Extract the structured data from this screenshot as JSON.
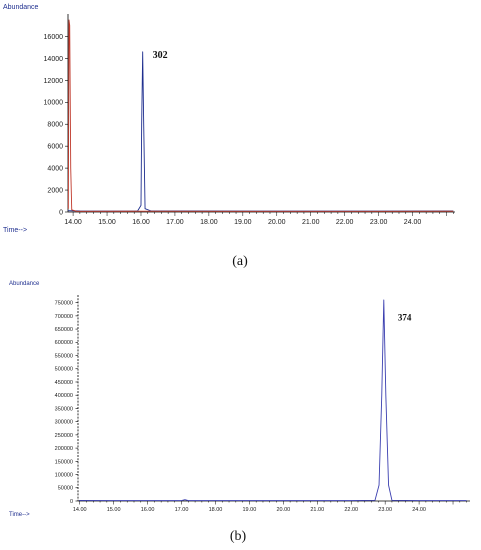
{
  "chart_data": [
    {
      "type": "line",
      "panel_label": "(a)",
      "ylabel": "Abundance",
      "xlabel": "Time-->",
      "xlim": [
        13.85,
        25.25
      ],
      "ylim": [
        0,
        17500
      ],
      "x_ticks": [
        "14.00",
        "15.00",
        "16.00",
        "17.00",
        "18.00",
        "19.00",
        "20.00",
        "21.00",
        "22.00",
        "23.00",
        "24.00"
      ],
      "y_ticks": [
        "0",
        "2000",
        "4000",
        "6000",
        "8000",
        "10000",
        "12000",
        "14000",
        "16000"
      ],
      "annotations": [
        {
          "text": "302",
          "x": 16.05,
          "y": 14600
        }
      ],
      "series": [
        {
          "color": "#1f2f8f",
          "points": [
            [
              13.85,
              120
            ],
            [
              14.2,
              90
            ],
            [
              15.0,
              80
            ],
            [
              15.9,
              90
            ],
            [
              16.0,
              600
            ],
            [
              16.02,
              8000
            ],
            [
              16.05,
              14600
            ],
            [
              16.08,
              8000
            ],
            [
              16.12,
              300
            ],
            [
              16.3,
              90
            ],
            [
              17.5,
              90
            ],
            [
              20.0,
              80
            ],
            [
              22.0,
              80
            ],
            [
              25.2,
              90
            ]
          ]
        },
        {
          "color": "#c0392b",
          "points": [
            [
              13.86,
              300
            ],
            [
              13.88,
              17500
            ],
            [
              13.9,
              17000
            ],
            [
              13.93,
              4000
            ],
            [
              13.96,
              200
            ],
            [
              14.1,
              60
            ],
            [
              16.0,
              70
            ],
            [
              20.0,
              60
            ],
            [
              25.2,
              70
            ]
          ]
        }
      ]
    },
    {
      "type": "line",
      "panel_label": "(b)",
      "ylabel": "Abundance",
      "xlabel": "Time-->",
      "xlim": [
        13.95,
        25.5
      ],
      "ylim": [
        0,
        760000
      ],
      "x_ticks": [
        "14.00",
        "15.00",
        "16.00",
        "17.00",
        "18.00",
        "19.00",
        "20.00",
        "21.00",
        "22.00",
        "23.00",
        "24.00"
      ],
      "y_ticks": [
        "0",
        "50000",
        "100000",
        "150000",
        "200000",
        "250000",
        "300000",
        "350000",
        "400000",
        "450000",
        "500000",
        "550000",
        "600000",
        "650000",
        "700000",
        "750000"
      ],
      "annotations": [
        {
          "text": "374",
          "x": 23.08,
          "y": 705000
        }
      ],
      "series": [
        {
          "color": "#3b3fb0",
          "points": [
            [
              13.98,
              2000
            ],
            [
              15.0,
              1500
            ],
            [
              17.0,
              1500
            ],
            [
              17.1,
              5000
            ],
            [
              17.2,
              1500
            ],
            [
              18.0,
              1500
            ],
            [
              22.0,
              1500
            ],
            [
              22.7,
              2500
            ],
            [
              22.82,
              60000
            ],
            [
              22.9,
              400000
            ],
            [
              22.96,
              760000
            ],
            [
              23.02,
              400000
            ],
            [
              23.1,
              60000
            ],
            [
              23.2,
              2500
            ],
            [
              24.0,
              1500
            ],
            [
              25.4,
              1500
            ]
          ]
        }
      ]
    }
  ]
}
